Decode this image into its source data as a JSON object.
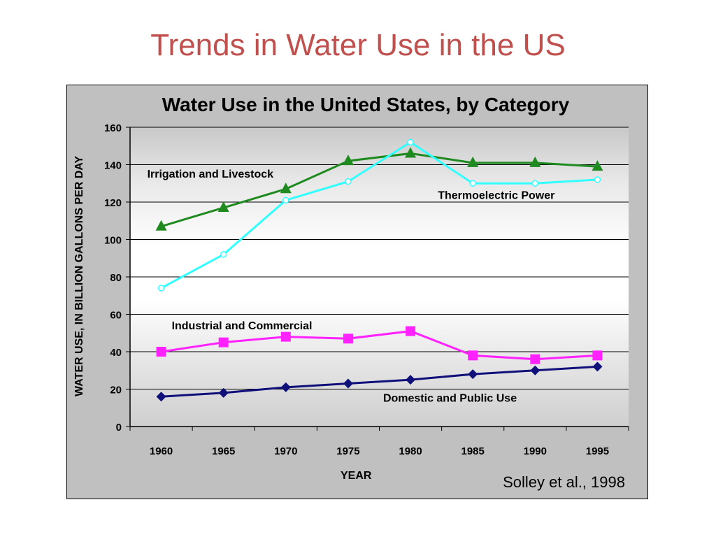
{
  "slide": {
    "title": "Trends in Water Use in the US",
    "source": "Solley et al., 1998"
  },
  "chart_data": {
    "type": "line",
    "title": "Water Use in the United States, by Category",
    "xlabel": "YEAR",
    "ylabel": "WATER USE, IN BILLION GALLONS PER DAY",
    "categories": [
      "1960",
      "1965",
      "1970",
      "1975",
      "1980",
      "1985",
      "1990",
      "1995"
    ],
    "ylim": [
      0,
      160
    ],
    "yticks": [
      0,
      20,
      40,
      60,
      80,
      100,
      120,
      140,
      160
    ],
    "grid": true,
    "series": [
      {
        "name": "Irrigation and Livestock",
        "color": "#1f8a1f",
        "marker": "triangle",
        "values": [
          107,
          117,
          127,
          142,
          146,
          141,
          141,
          139
        ]
      },
      {
        "name": "Thermoelectric Power",
        "color": "#33ffff",
        "marker": "circle",
        "values": [
          74,
          92,
          121,
          131,
          152,
          130,
          130,
          132
        ]
      },
      {
        "name": "Industrial and Commercial",
        "color": "#ff22ff",
        "marker": "square",
        "values": [
          40,
          45,
          48,
          47,
          51,
          38,
          36,
          38
        ]
      },
      {
        "name": "Domestic and Public Use",
        "color": "#10107a",
        "marker": "diamond",
        "values": [
          16,
          18,
          21,
          23,
          25,
          28,
          30,
          32
        ]
      }
    ]
  }
}
